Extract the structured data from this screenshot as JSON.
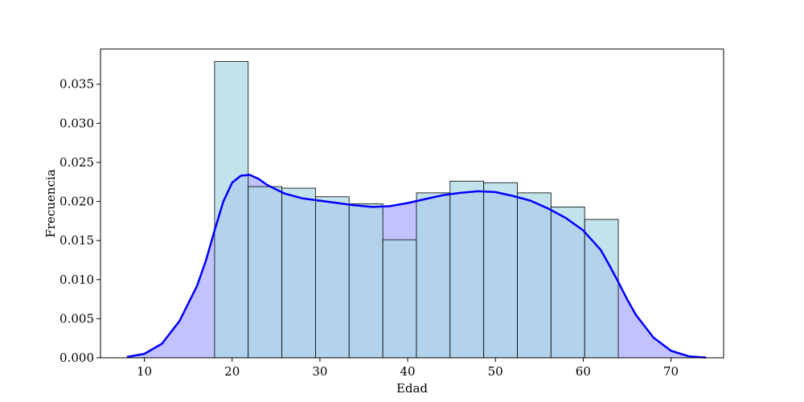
{
  "chart_data": {
    "type": "bar",
    "subtype": "histogram-with-kde",
    "title": "",
    "xlabel": "Edad",
    "ylabel": "Frecuencia",
    "xlim": [
      5,
      76
    ],
    "ylim": [
      0,
      0.0395
    ],
    "xticks": [
      10,
      20,
      30,
      40,
      50,
      60,
      70
    ],
    "yticks": [
      0.0,
      0.005,
      0.01,
      0.015,
      0.02,
      0.025,
      0.03,
      0.035
    ],
    "ytick_labels": [
      "0.000",
      "0.005",
      "0.010",
      "0.015",
      "0.020",
      "0.025",
      "0.030",
      "0.035"
    ],
    "grid": false,
    "histogram": {
      "bin_edges": [
        18,
        21.83,
        25.67,
        29.5,
        33.33,
        37.17,
        41,
        44.83,
        48.67,
        52.5,
        56.33,
        60.17,
        64
      ],
      "values": [
        0.0379,
        0.0219,
        0.0217,
        0.0206,
        0.0197,
        0.0151,
        0.0211,
        0.0226,
        0.0224,
        0.0211,
        0.0193,
        0.0177
      ],
      "fill_color": "#add8e6",
      "edge_color": "#000000"
    },
    "kde": {
      "x": [
        8,
        10,
        12,
        14,
        16,
        17,
        18,
        19,
        20,
        21,
        22,
        23,
        24,
        26,
        28,
        30,
        32,
        34,
        36,
        38,
        40,
        42,
        44,
        46,
        48,
        50,
        52,
        54,
        56,
        58,
        60,
        62,
        63,
        64,
        65,
        66,
        68,
        70,
        72,
        74
      ],
      "y": [
        0.0001,
        0.0005,
        0.0018,
        0.0047,
        0.0092,
        0.0124,
        0.0163,
        0.02,
        0.0224,
        0.0233,
        0.0234,
        0.0229,
        0.0221,
        0.021,
        0.0204,
        0.0201,
        0.0198,
        0.0195,
        0.0193,
        0.0194,
        0.0198,
        0.0203,
        0.0208,
        0.0211,
        0.0213,
        0.0212,
        0.0207,
        0.0201,
        0.0191,
        0.0179,
        0.0163,
        0.0138,
        0.0118,
        0.0097,
        0.0075,
        0.0055,
        0.0026,
        0.0009,
        0.0002,
        3e-05
      ],
      "line_color": "#0000ff",
      "fill_color": "#9999ff"
    }
  }
}
